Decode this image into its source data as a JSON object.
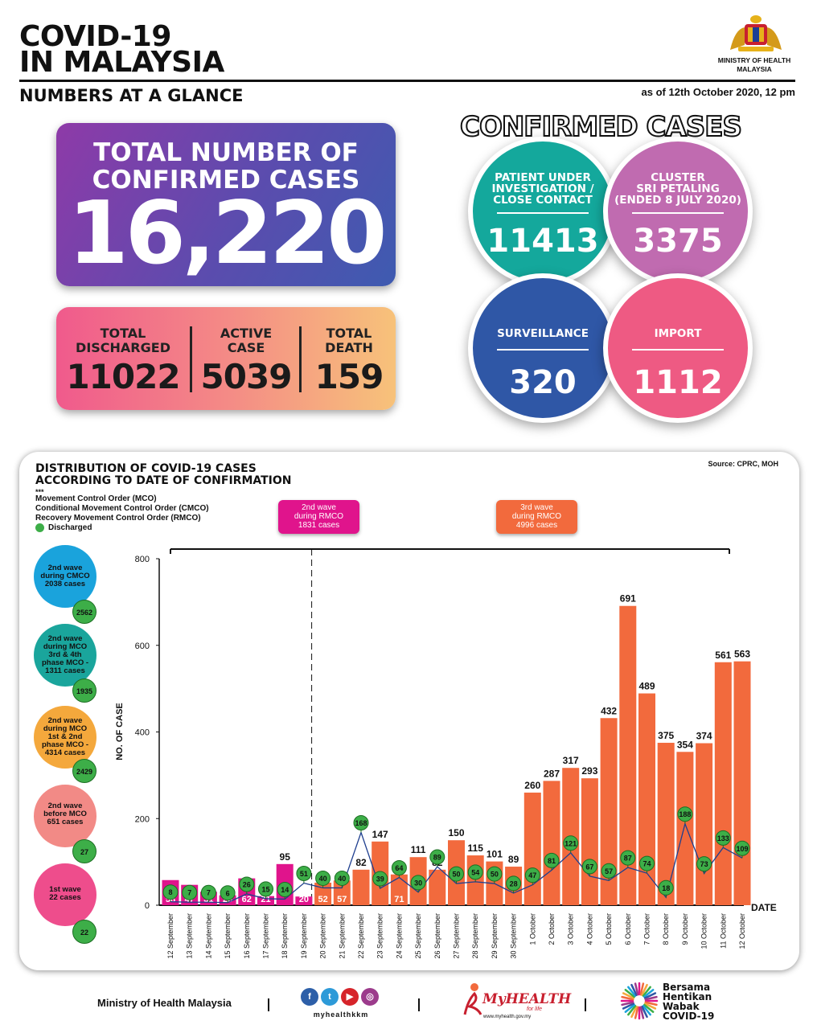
{
  "header": {
    "title_line1": "COVID-19",
    "title_line2": "IN MALAYSIA",
    "subtitle": "NUMBERS AT A GLANCE",
    "as_of": "as of 12th October 2020, 12 pm",
    "ministry_line1": "MINISTRY OF HEALTH",
    "ministry_line2": "MALAYSIA"
  },
  "total": {
    "label_line1": "TOTAL NUMBER OF",
    "label_line2": "CONFIRMED CASES",
    "value": "16,220"
  },
  "stats": [
    {
      "label_line1": "TOTAL",
      "label_line2": "DISCHARGED",
      "value": "11022"
    },
    {
      "label_line1": "ACTIVE",
      "label_line2": "CASE",
      "value": "5039"
    },
    {
      "label_line1": "TOTAL",
      "label_line2": "DEATH",
      "value": "159"
    }
  ],
  "confirmed": {
    "heading": "CONFIRMED CASES",
    "bubbles": [
      {
        "line1": "PATIENT UNDER",
        "line2": "INVESTIGATION /",
        "line3": "CLOSE CONTACT",
        "value": "11413",
        "color": "#14a89c"
      },
      {
        "line1": "CLUSTER",
        "line2": "SRI PETALING",
        "line3": "(ENDED 8 JULY 2020)",
        "value": "3375",
        "color": "#c06bb0"
      },
      {
        "line1": "SURVEILLANCE",
        "line2": "",
        "line3": "",
        "value": "320",
        "color": "#2f57a6"
      },
      {
        "line1": "IMPORT",
        "line2": "",
        "line3": "",
        "value": "1112",
        "color": "#ee5a83"
      }
    ]
  },
  "chart_panel": {
    "title_line1": "DISTRIBUTION OF COVID-19 CASES",
    "title_line2": "ACCORDING TO DATE OF CONFIRMATION",
    "source": "Source: CPRC, MOH",
    "stars": "***",
    "legend": [
      "Movement Control Order (MCO)",
      "Conditional Movement Control Order (CMCO)",
      "Recovery Movement Control Order (RMCO)",
      "Discharged"
    ],
    "wave_boxes": [
      {
        "line1": "2nd wave",
        "line2": "during RMCO",
        "line3": "1831 cases",
        "color": "#e0148c"
      },
      {
        "line1": "3rd wave",
        "line2": "during RMCO",
        "line3": "4996 cases",
        "color": "#f26a3d"
      }
    ],
    "side_waves": [
      {
        "line1": "2nd wave",
        "line2": "during CMCO",
        "line3": "2038 cases",
        "line4": "",
        "badge": "2562",
        "color": "#1aa3dc"
      },
      {
        "line1": "2nd wave",
        "line2": "during MCO",
        "line3": "3rd & 4th",
        "line4": "phase MCO -",
        "line5": "1311 cases",
        "badge": "1935",
        "color": "#1aa59c"
      },
      {
        "line1": "2nd wave",
        "line2": "during MCO",
        "line3": "1st & 2nd",
        "line4": "phase MCO -",
        "line5": "4314 cases",
        "badge": "2429",
        "color": "#f4a83c"
      },
      {
        "line1": "2nd wave",
        "line2": "before MCO",
        "line3": "651 cases",
        "line4": "",
        "badge": "27",
        "color": "#f28a86"
      },
      {
        "line1": "1st wave",
        "line2": "22 cases",
        "line3": "",
        "line4": "",
        "badge": "22",
        "color": "#ee4d8c"
      }
    ]
  },
  "chart_data": {
    "type": "bar",
    "ylabel": "NO. OF CASE",
    "xlabel": "DATE",
    "ylim": [
      0,
      800
    ],
    "yticks": [
      0,
      200,
      400,
      600,
      800
    ],
    "categories": [
      "12 September",
      "13 September",
      "14 September",
      "15 September",
      "16 September",
      "17 September",
      "18 September",
      "19 September",
      "20 September",
      "21 September",
      "22 September",
      "23 September",
      "24 September",
      "25 September",
      "26 September",
      "27 September",
      "28 September",
      "29 September",
      "30 September",
      "1 October",
      "2 October",
      "3 October",
      "4 October",
      "5 October",
      "6 October",
      "7 October",
      "8 October",
      "9 October",
      "10 October",
      "11 October",
      "12 October"
    ],
    "series": [
      {
        "values": [
          58,
          47,
          31,
          23,
          62,
          21,
          95,
          20,
          52,
          57,
          82,
          147,
          71,
          111,
          82,
          150,
          115,
          101,
          89,
          260,
          287,
          317,
          293,
          432,
          691,
          489,
          375,
          354,
          374,
          561,
          563
        ]
      },
      {
        "name": "Discharged",
        "values": [
          8,
          7,
          7,
          6,
          26,
          15,
          14,
          51,
          40,
          40,
          168,
          39,
          64,
          30,
          89,
          50,
          54,
          50,
          28,
          47,
          81,
          121,
          67,
          57,
          87,
          74,
          18,
          188,
          73,
          133,
          109
        ]
      }
    ],
    "bar_colors": [
      "#e0148c",
      "#e0148c",
      "#e0148c",
      "#e0148c",
      "#e0148c",
      "#e0148c",
      "#e0148c",
      "#e0148c",
      "#f26a3d",
      "#f26a3d",
      "#f26a3d",
      "#f26a3d",
      "#f26a3d",
      "#f26a3d",
      "#f26a3d",
      "#f26a3d",
      "#f26a3d",
      "#f26a3d",
      "#f26a3d",
      "#f26a3d",
      "#f26a3d",
      "#f26a3d",
      "#f26a3d",
      "#f26a3d",
      "#f26a3d",
      "#f26a3d",
      "#f26a3d",
      "#f26a3d",
      "#f26a3d",
      "#f26a3d",
      "#f26a3d"
    ],
    "line_color": "#1f3f8f",
    "grid": false
  },
  "footer": {
    "ministry": "Ministry of Health Malaysia",
    "social_handle": "myhealthkkm",
    "myhealth": "MyHEALTH",
    "myhealth_tag": "for life",
    "myhealth_url": "www.myhealth.gov.my",
    "bersama_line1": "Bersama",
    "bersama_line2": "Hentikan",
    "bersama_line3": "Wabak",
    "bersama_line4": "COVID-19"
  }
}
